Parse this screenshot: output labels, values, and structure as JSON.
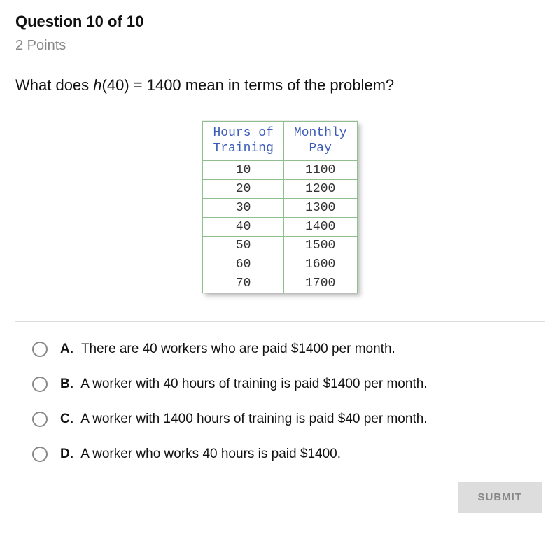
{
  "header": {
    "title": "Question 10 of 10",
    "points": "2 Points"
  },
  "prompt": {
    "prefix": "What does ",
    "fn": "h",
    "arg": "(40) = 1400",
    "suffix": " mean in terms of the problem?"
  },
  "table": {
    "col1_header_line1": "Hours of",
    "col1_header_line2": "Training",
    "col2_header_line1": "Monthly",
    "col2_header_line2": "Pay",
    "rows": [
      {
        "hours": "10",
        "pay": "1100"
      },
      {
        "hours": "20",
        "pay": "1200"
      },
      {
        "hours": "30",
        "pay": "1300"
      },
      {
        "hours": "40",
        "pay": "1400"
      },
      {
        "hours": "50",
        "pay": "1500"
      },
      {
        "hours": "60",
        "pay": "1600"
      },
      {
        "hours": "70",
        "pay": "1700"
      }
    ],
    "header_color": "#3b5bb8",
    "border_color": "#8fbf8f",
    "cell_font": "Courier New"
  },
  "options": [
    {
      "letter": "A.",
      "text": "There are 40 workers who are paid $1400 per month."
    },
    {
      "letter": "B.",
      "text": "A worker with 40 hours of training is paid $1400 per month."
    },
    {
      "letter": "C.",
      "text": "A worker with 1400 hours of training is paid $40 per month."
    },
    {
      "letter": "D.",
      "text": "A worker who works 40 hours is paid $1400."
    }
  ],
  "submit": {
    "label": "SUBMIT"
  },
  "colors": {
    "text": "#111111",
    "muted": "#888888",
    "divider": "#dddddd",
    "button_bg": "#dddddd",
    "button_fg": "#888888",
    "background": "#ffffff"
  }
}
